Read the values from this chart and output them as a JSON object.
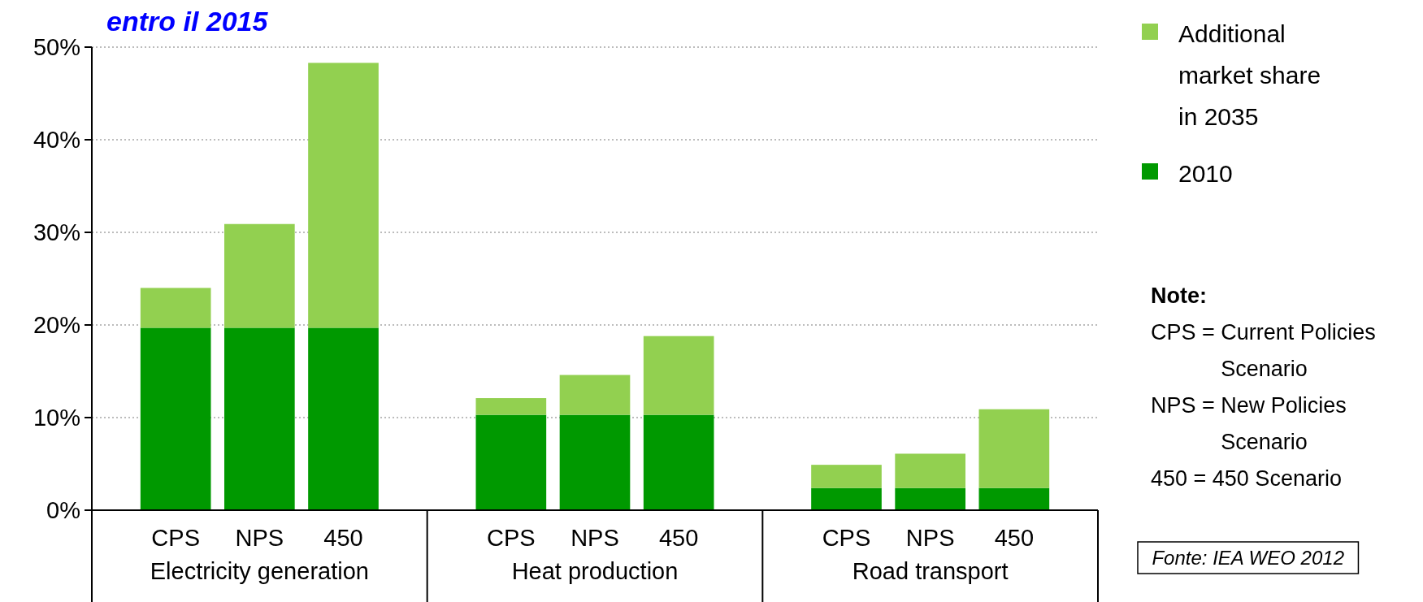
{
  "chart_data": {
    "type": "bar",
    "title": "entro il 2015",
    "stacked": true,
    "categories": [
      "CPS",
      "NPS",
      "450",
      "CPS",
      "NPS",
      "450",
      "CPS",
      "NPS",
      "450"
    ],
    "series": [
      {
        "name": "2010",
        "color": "#009900",
        "values": [
          19.7,
          19.7,
          19.7,
          10.3,
          10.3,
          10.3,
          2.4,
          2.4,
          2.4
        ]
      },
      {
        "name": "Additional market share in 2035",
        "color": "#92d050",
        "values": [
          4.3,
          11.2,
          28.6,
          1.8,
          4.3,
          8.5,
          2.5,
          3.7,
          8.5
        ]
      }
    ],
    "ylim": [
      0,
      50
    ],
    "yticks": [
      {
        "value": 0,
        "label": "0%"
      },
      {
        "value": 10,
        "label": "10%"
      },
      {
        "value": 20,
        "label": "20%"
      },
      {
        "value": 30,
        "label": "30%"
      },
      {
        "value": 40,
        "label": "40%"
      },
      {
        "value": 50,
        "label": "50%"
      }
    ],
    "grid": "y",
    "legend": "top right",
    "annotations": [
      "Electricity generation",
      "Heat production",
      "Road transport",
      "Note:",
      "CPS = Current Policies Scenario",
      "NPS = New Policies Scenario",
      "450 = 450 Scenario",
      "Fonte: IEA WEO 2012"
    ]
  }
}
